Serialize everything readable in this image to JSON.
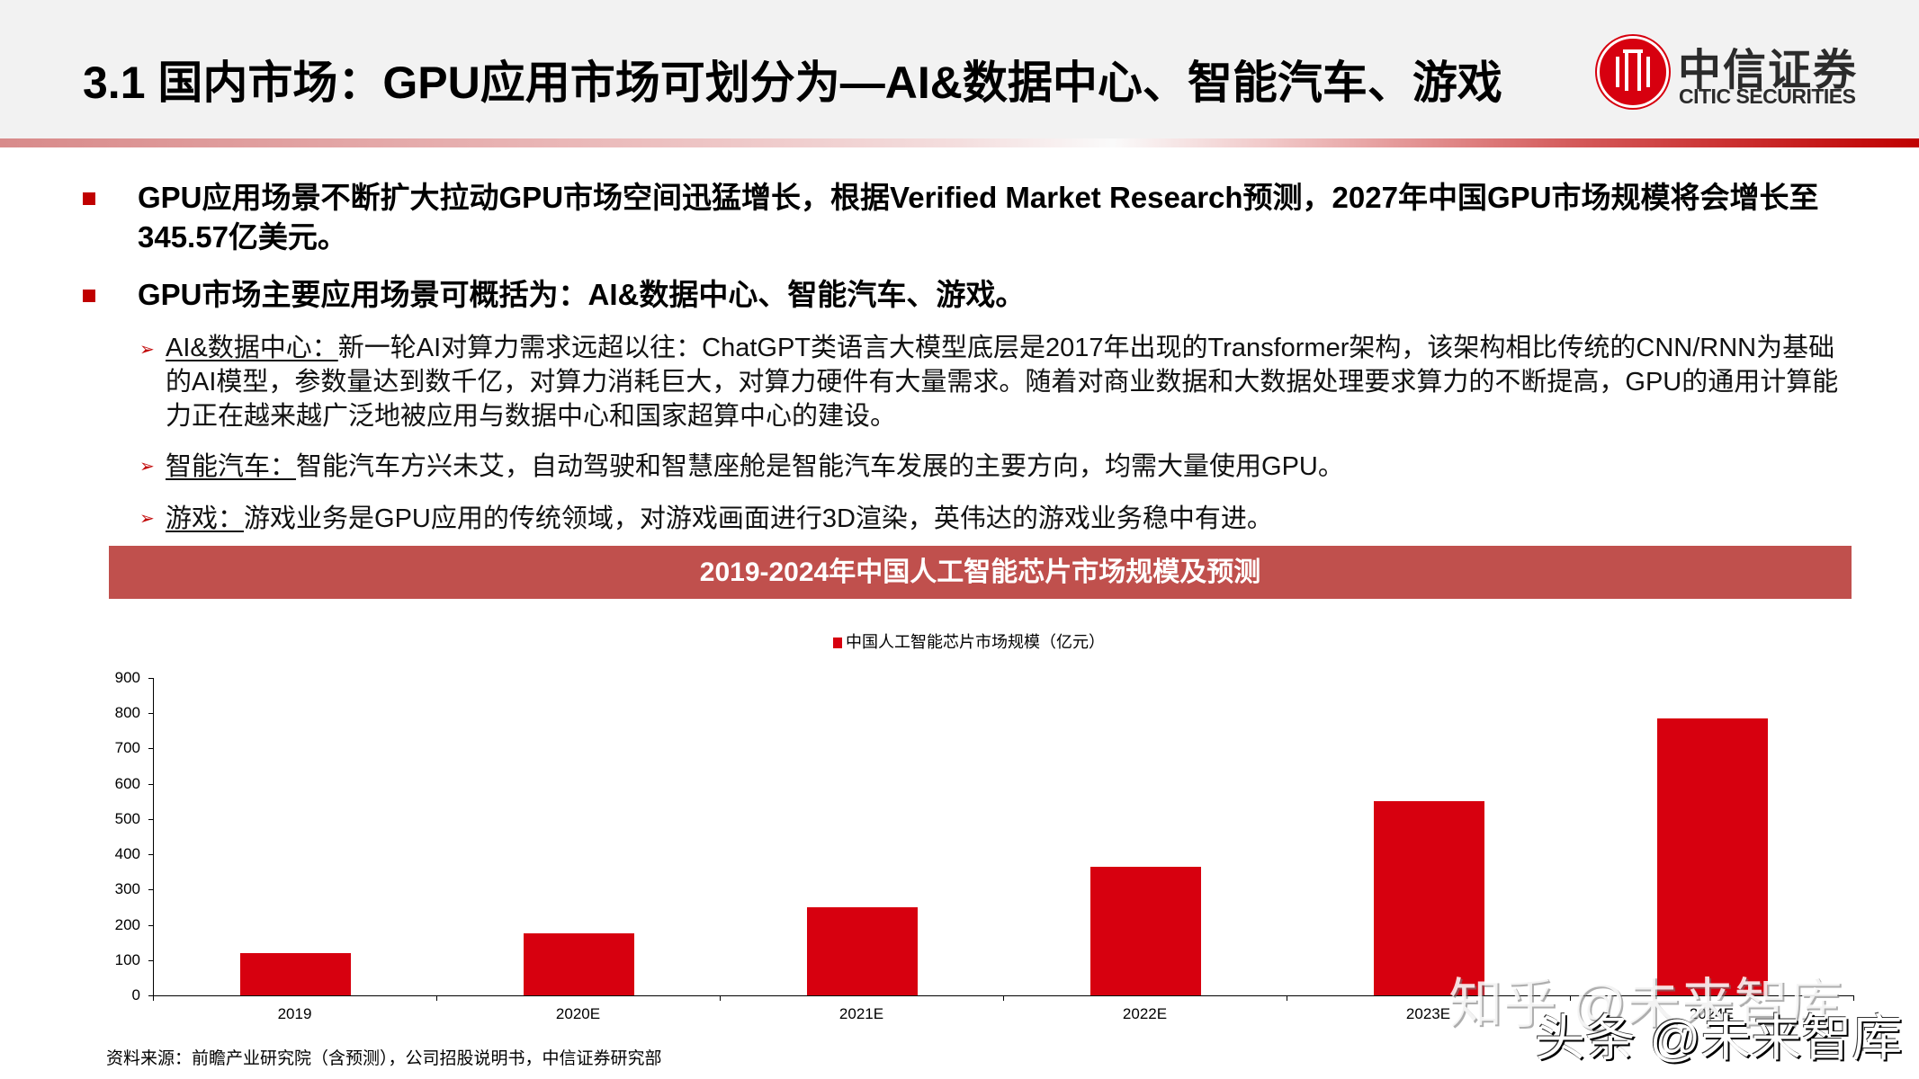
{
  "header": {
    "title": "3.1 国内市场：GPU应用市场可划分为—AI&数据中心、智能汽车、游戏",
    "logo_cn": "中信证券",
    "logo_en": "CITIC SECURITIES",
    "logo_mark": "CITIC",
    "accent_color": "#c00000"
  },
  "bullets": [
    {
      "text": "GPU应用场景不断扩大拉动GPU市场空间迅猛增长，根据Verified Market Research预测，2027年中国GPU市场规模将会增长至345.57亿美元。"
    },
    {
      "text": "GPU市场主要应用场景可概括为：AI&数据中心、智能汽车、游戏。"
    }
  ],
  "sub_items": [
    {
      "lead": "AI&数据中心：",
      "text": "新一轮AI对算力需求远超以往：ChatGPT类语言大模型底层是2017年出现的Transformer架构，该架构相比传统的CNN/RNN为基础的AI模型，参数量达到数千亿，对算力消耗巨大，对算力硬件有大量需求。随着对商业数据和大数据处理要求算力的不断提高，GPU的通用计算能力正在越来越广泛地被应用与数据中心和国家超算中心的建设。"
    },
    {
      "lead": "智能汽车：",
      "text": "智能汽车方兴未艾，自动驾驶和智慧座舱是智能汽车发展的主要方向，均需大量使用GPU。"
    },
    {
      "lead": "游戏：",
      "text": "游戏业务是GPU应用的传统领域，对游戏画面进行3D渲染，英伟达的游戏业务稳中有进。"
    }
  ],
  "chart_data": {
    "type": "bar",
    "title": "2019-2024年中国人工智能芯片市场规模及预测",
    "categories": [
      "2019",
      "2020E",
      "2021E",
      "2022E",
      "2023E",
      "2024E"
    ],
    "series": [
      {
        "name": "中国人工智能芯片市场规模（亿元）",
        "color": "#d7000f",
        "values": [
          120,
          175,
          250,
          365,
          550,
          785
        ]
      }
    ],
    "values": [
      120,
      175,
      250,
      365,
      550,
      785
    ],
    "xlabel": "",
    "ylabel": "",
    "ylim": [
      0,
      900
    ],
    "yticks": [
      "900",
      "800",
      "700",
      "600",
      "500",
      "400",
      "300",
      "200",
      "100",
      "0"
    ],
    "grid": false,
    "legend_position": "top"
  },
  "source": "资料来源：前瞻产业研究院（含预测），公司招股说明书，中信证券研究部",
  "watermarks": [
    "知乎 @未来智库",
    "头条 @未来智库"
  ]
}
